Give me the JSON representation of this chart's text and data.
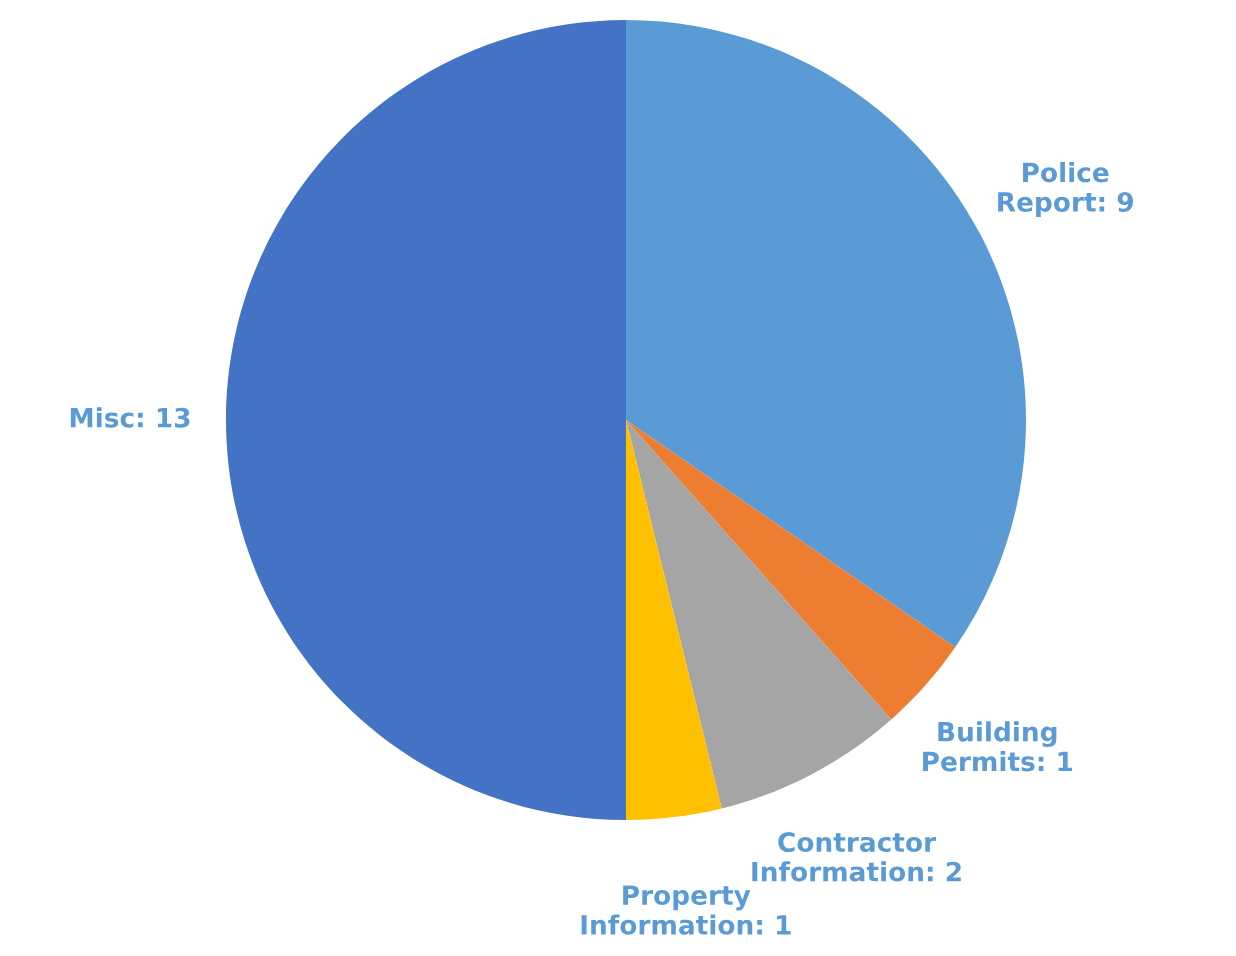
{
  "chart_data": {
    "type": "pie",
    "categories": [
      "Police Report: 9",
      "Building Permits: 1",
      "Contractor Information: 2",
      "Property Information: 1",
      "Misc: 13"
    ],
    "values": [
      9,
      1,
      2,
      1,
      13
    ],
    "colors": [
      "#5b9bd5",
      "#ed7d31",
      "#a5a5a5",
      "#ffc000",
      "#4472c4"
    ]
  }
}
